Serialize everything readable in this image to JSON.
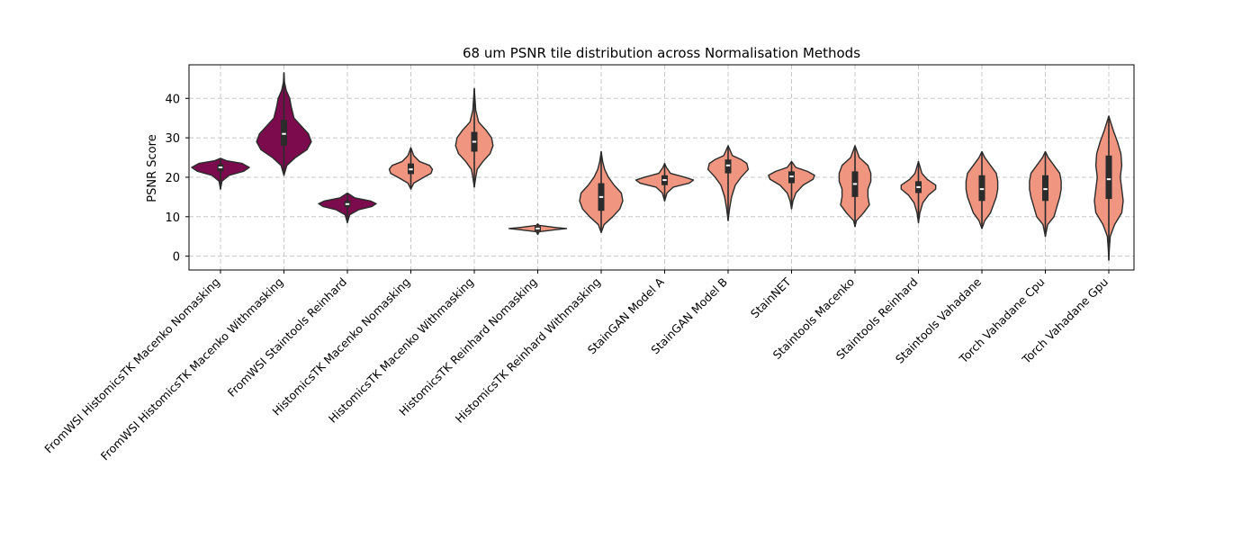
{
  "chart_data": {
    "type": "violin",
    "title": "68 um PSNR tile distribution across Normalisation Methods",
    "xlabel": "",
    "ylabel": "PSNR Score",
    "ylim": [
      -3.5,
      48.5
    ],
    "yticks": [
      0,
      10,
      20,
      30,
      40
    ],
    "grid": true,
    "highlight_color": "#7b0b4c",
    "default_color": "#f0957f",
    "categories": [
      "FromWSI HistomicsTK Macenko Nomasking",
      "FromWSI HistomicsTK Macenko Withmasking",
      "FromWSI Staintools Reinhard",
      "HistomicsTK Macenko Nomasking",
      "HistomicsTK Macenko Withmasking",
      "HistomicsTK Reinhard Nomasking",
      "HistomicsTK Reinhard Withmasking",
      "StainGAN Model A",
      "StainGAN Model B",
      "StainNET",
      "Staintools Macenko",
      "Staintools Reinhard",
      "Staintools Vahadane",
      "Torch Vahadane Cpu",
      "Torch Vahadane Gpu"
    ],
    "series": [
      {
        "highlight": true,
        "min": 17,
        "q1": 21.5,
        "median": 22.5,
        "q3": 23.3,
        "max": 24.8,
        "density": [
          [
            17,
            0
          ],
          [
            19,
            0.05
          ],
          [
            20.5,
            0.3
          ],
          [
            21.5,
            0.8
          ],
          [
            22.5,
            1
          ],
          [
            23.5,
            0.75
          ],
          [
            24.2,
            0.2
          ],
          [
            24.8,
            0
          ]
        ]
      },
      {
        "highlight": true,
        "min": 20.5,
        "q1": 28,
        "median": 31,
        "q3": 34.5,
        "max": 46.5,
        "density": [
          [
            20.5,
            0
          ],
          [
            23,
            0.1
          ],
          [
            25,
            0.4
          ],
          [
            27,
            0.8
          ],
          [
            29,
            0.95
          ],
          [
            31,
            0.85
          ],
          [
            33,
            0.6
          ],
          [
            35,
            0.35
          ],
          [
            38,
            0.25
          ],
          [
            40,
            0.2
          ],
          [
            42,
            0.08
          ],
          [
            44,
            0.02
          ],
          [
            46.5,
            0
          ]
        ]
      },
      {
        "highlight": true,
        "min": 8.5,
        "q1": 12.5,
        "median": 13.2,
        "q3": 14,
        "max": 16,
        "density": [
          [
            8.5,
            0
          ],
          [
            10.5,
            0.08
          ],
          [
            11.8,
            0.4
          ],
          [
            12.6,
            0.85
          ],
          [
            13.3,
            1
          ],
          [
            14,
            0.8
          ],
          [
            14.8,
            0.25
          ],
          [
            16,
            0
          ]
        ]
      },
      {
        "highlight": false,
        "min": 17,
        "q1": 20.8,
        "median": 22,
        "q3": 23.5,
        "max": 27.5,
        "density": [
          [
            17,
            0
          ],
          [
            18.5,
            0.1
          ],
          [
            19.8,
            0.4
          ],
          [
            21,
            0.7
          ],
          [
            22,
            0.75
          ],
          [
            23,
            0.65
          ],
          [
            24,
            0.3
          ],
          [
            25.5,
            0.1
          ],
          [
            27.5,
            0
          ]
        ]
      },
      {
        "highlight": false,
        "min": 17.5,
        "q1": 26.5,
        "median": 29,
        "q3": 31.5,
        "max": 42.5,
        "density": [
          [
            17.5,
            0
          ],
          [
            20,
            0.05
          ],
          [
            22,
            0.1
          ],
          [
            24,
            0.3
          ],
          [
            26,
            0.55
          ],
          [
            28,
            0.65
          ],
          [
            30,
            0.6
          ],
          [
            32,
            0.4
          ],
          [
            34,
            0.15
          ],
          [
            37,
            0.05
          ],
          [
            42.5,
            0
          ]
        ]
      },
      {
        "highlight": false,
        "min": 5.5,
        "q1": 6.4,
        "median": 7,
        "q3": 7.6,
        "max": 8.2,
        "density": [
          [
            5.5,
            0
          ],
          [
            6.2,
            0.05
          ],
          [
            6.7,
            0.6
          ],
          [
            7,
            1
          ],
          [
            7.3,
            0.6
          ],
          [
            7.8,
            0.05
          ],
          [
            8.2,
            0
          ]
        ]
      },
      {
        "highlight": false,
        "min": 6,
        "q1": 11.5,
        "median": 15,
        "q3": 18.5,
        "max": 26.5,
        "density": [
          [
            6,
            0
          ],
          [
            8,
            0.1
          ],
          [
            10,
            0.4
          ],
          [
            12,
            0.65
          ],
          [
            14,
            0.75
          ],
          [
            16,
            0.7
          ],
          [
            18,
            0.45
          ],
          [
            20,
            0.25
          ],
          [
            22,
            0.12
          ],
          [
            24,
            0.05
          ],
          [
            26.5,
            0
          ]
        ]
      },
      {
        "highlight": false,
        "min": 14,
        "q1": 18,
        "median": 19.3,
        "q3": 20.5,
        "max": 23.5,
        "density": [
          [
            14,
            0
          ],
          [
            16,
            0.08
          ],
          [
            17.5,
            0.3
          ],
          [
            18.5,
            0.85
          ],
          [
            19.3,
            1
          ],
          [
            20,
            0.7
          ],
          [
            21,
            0.2
          ],
          [
            22.5,
            0.06
          ],
          [
            23.5,
            0
          ]
        ]
      },
      {
        "highlight": false,
        "min": 9,
        "q1": 21,
        "median": 23,
        "q3": 24.5,
        "max": 28,
        "density": [
          [
            9,
            0
          ],
          [
            12,
            0.05
          ],
          [
            15,
            0.12
          ],
          [
            18,
            0.25
          ],
          [
            20,
            0.45
          ],
          [
            22,
            0.7
          ],
          [
            23.5,
            0.65
          ],
          [
            24.5,
            0.45
          ],
          [
            25.5,
            0.15
          ],
          [
            28,
            0
          ]
        ]
      },
      {
        "highlight": false,
        "min": 12,
        "q1": 18.5,
        "median": 20.2,
        "q3": 21.5,
        "max": 24,
        "density": [
          [
            12,
            0
          ],
          [
            14,
            0.05
          ],
          [
            16,
            0.15
          ],
          [
            18,
            0.4
          ],
          [
            19.5,
            0.75
          ],
          [
            20.5,
            0.8
          ],
          [
            21.5,
            0.55
          ],
          [
            22.5,
            0.15
          ],
          [
            24,
            0
          ]
        ]
      },
      {
        "highlight": false,
        "min": 7.5,
        "q1": 15,
        "median": 18.3,
        "q3": 21.5,
        "max": 28,
        "density": [
          [
            7.5,
            0
          ],
          [
            9,
            0.05
          ],
          [
            11,
            0.3
          ],
          [
            13,
            0.5
          ],
          [
            15,
            0.45
          ],
          [
            17,
            0.45
          ],
          [
            19,
            0.55
          ],
          [
            21,
            0.55
          ],
          [
            23,
            0.45
          ],
          [
            25,
            0.15
          ],
          [
            28,
            0
          ]
        ]
      },
      {
        "highlight": false,
        "min": 8.5,
        "q1": 16,
        "median": 17.5,
        "q3": 19,
        "max": 24,
        "density": [
          [
            8.5,
            0
          ],
          [
            11,
            0.05
          ],
          [
            13.5,
            0.15
          ],
          [
            15.5,
            0.35
          ],
          [
            17,
            0.6
          ],
          [
            18,
            0.6
          ],
          [
            19.5,
            0.3
          ],
          [
            21,
            0.12
          ],
          [
            24,
            0
          ]
        ]
      },
      {
        "highlight": false,
        "min": 7,
        "q1": 14,
        "median": 17,
        "q3": 20.5,
        "max": 26.5,
        "density": [
          [
            7,
            0
          ],
          [
            9,
            0.1
          ],
          [
            11,
            0.3
          ],
          [
            13,
            0.4
          ],
          [
            15,
            0.5
          ],
          [
            17,
            0.55
          ],
          [
            19,
            0.55
          ],
          [
            21,
            0.5
          ],
          [
            23,
            0.3
          ],
          [
            25,
            0.1
          ],
          [
            26.5,
            0
          ]
        ]
      },
      {
        "highlight": false,
        "min": 5,
        "q1": 14,
        "median": 17,
        "q3": 20.5,
        "max": 26.5,
        "density": [
          [
            5,
            0
          ],
          [
            8,
            0.08
          ],
          [
            10,
            0.3
          ],
          [
            12.5,
            0.4
          ],
          [
            15,
            0.5
          ],
          [
            17,
            0.55
          ],
          [
            19,
            0.55
          ],
          [
            21,
            0.5
          ],
          [
            23,
            0.3
          ],
          [
            25,
            0.1
          ],
          [
            26.5,
            0
          ]
        ]
      },
      {
        "highlight": false,
        "min": -1,
        "q1": 14.5,
        "median": 19.5,
        "q3": 25.5,
        "max": 35.5,
        "density": [
          [
            -1,
            0
          ],
          [
            2,
            0.02
          ],
          [
            5,
            0.05
          ],
          [
            8,
            0.2
          ],
          [
            11,
            0.45
          ],
          [
            14,
            0.5
          ],
          [
            17,
            0.45
          ],
          [
            20,
            0.4
          ],
          [
            23,
            0.45
          ],
          [
            26,
            0.42
          ],
          [
            29,
            0.3
          ],
          [
            32,
            0.15
          ],
          [
            35.5,
            0
          ]
        ]
      }
    ]
  }
}
